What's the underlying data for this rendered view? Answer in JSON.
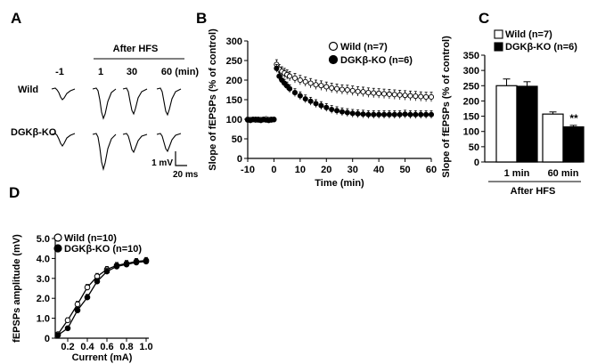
{
  "panels": {
    "a": "A",
    "b": "B",
    "c": "C",
    "d": "D"
  },
  "panel_a": {
    "header": "After HFS",
    "time_points": [
      "-1",
      "1",
      "30",
      "60 (min)"
    ],
    "rows": [
      "Wild",
      "DGKβ-KO"
    ],
    "scale_v": "1 mV",
    "scale_t": "20 ms"
  },
  "chart_data": [
    {
      "id": "b",
      "type": "line",
      "xlabel": "Time (min)",
      "ylabel": "Slope of fEPSPs (% of control)",
      "xlim": [
        -10,
        60
      ],
      "ylim": [
        0,
        300
      ],
      "xticks": [
        -10,
        0,
        10,
        20,
        30,
        40,
        50,
        60
      ],
      "yticks": [
        0,
        50,
        100,
        150,
        200,
        250,
        300
      ],
      "legend": "top-right",
      "series": [
        {
          "name": "Wild (n=7)",
          "marker": "open-circle",
          "x": [
            -10,
            -9,
            -8,
            -7,
            -6,
            -5,
            -4,
            -3,
            -2,
            -1,
            0,
            1,
            2,
            3,
            4,
            5,
            6,
            8,
            10,
            12,
            14,
            16,
            18,
            20,
            22,
            24,
            26,
            28,
            30,
            32,
            34,
            36,
            38,
            40,
            42,
            44,
            46,
            48,
            50,
            52,
            54,
            56,
            58,
            60
          ],
          "y": [
            100,
            99,
            100,
            98,
            100,
            99,
            100,
            101,
            99,
            100,
            100,
            240,
            228,
            222,
            218,
            214,
            210,
            205,
            200,
            196,
            192,
            188,
            186,
            183,
            180,
            178,
            176,
            175,
            173,
            171,
            170,
            168,
            167,
            166,
            165,
            164,
            163,
            162,
            161,
            160,
            159,
            158,
            157,
            157
          ],
          "err": 12
        },
        {
          "name": "DGKβ-KO (n=6)",
          "marker": "filled-circle",
          "x": [
            -10,
            -9,
            -8,
            -7,
            -6,
            -5,
            -4,
            -3,
            -2,
            -1,
            0,
            1,
            2,
            3,
            4,
            5,
            6,
            8,
            10,
            12,
            14,
            16,
            18,
            20,
            22,
            24,
            26,
            28,
            30,
            32,
            34,
            36,
            38,
            40,
            42,
            44,
            46,
            48,
            50,
            52,
            54,
            56,
            58,
            60
          ],
          "y": [
            98,
            97,
            99,
            100,
            98,
            97,
            99,
            98,
            97,
            98,
            99,
            230,
            210,
            200,
            192,
            185,
            178,
            168,
            160,
            152,
            146,
            140,
            135,
            130,
            125,
            122,
            119,
            117,
            115,
            114,
            113,
            112,
            112,
            112,
            112,
            112,
            112,
            112,
            113,
            112,
            112,
            112,
            112,
            112
          ],
          "err": 10
        }
      ]
    },
    {
      "id": "c",
      "type": "bar",
      "ylabel": "Slope of fEPSPs (% of control)",
      "categories": [
        "1 min",
        "60 min"
      ],
      "xlabel": "After HFS",
      "ylim": [
        0,
        350
      ],
      "yticks": [
        0,
        50,
        100,
        150,
        200,
        250,
        300,
        350
      ],
      "legend": "top-right",
      "annotation": "**",
      "series": [
        {
          "name": "Wild (n=7)",
          "fill": "white",
          "values": [
            250,
            157
          ],
          "err": [
            22,
            7
          ]
        },
        {
          "name": "DGKβ-KO (n=6)",
          "fill": "black",
          "values": [
            248,
            115
          ],
          "err": [
            15,
            5
          ]
        }
      ]
    },
    {
      "id": "d",
      "type": "line",
      "xlabel": "Current (mA)",
      "ylabel": "fEPSPs amplitude (mV)",
      "xlim": [
        0.1,
        1.0
      ],
      "ylim": [
        0,
        5.0
      ],
      "xticks": [
        0.2,
        0.4,
        0.6,
        0.8,
        1.0
      ],
      "yticks": [
        0,
        1.0,
        2.0,
        3.0,
        4.0,
        5.0
      ],
      "legend": "top-left",
      "series": [
        {
          "name": "Wild (n=10)",
          "marker": "open-circle",
          "x": [
            0.1,
            0.2,
            0.3,
            0.4,
            0.5,
            0.6,
            0.7,
            0.8,
            0.9,
            1.0
          ],
          "y": [
            0.2,
            0.9,
            1.7,
            2.55,
            3.1,
            3.45,
            3.65,
            3.75,
            3.85,
            3.9
          ],
          "err": [
            0.05,
            0.12,
            0.15,
            0.15,
            0.15,
            0.15,
            0.15,
            0.15,
            0.15,
            0.15
          ]
        },
        {
          "name": "DGKβ-KO (n=10)",
          "marker": "filled-circle",
          "x": [
            0.1,
            0.2,
            0.3,
            0.4,
            0.5,
            0.6,
            0.7,
            0.8,
            0.9,
            1.0
          ],
          "y": [
            0.15,
            0.5,
            1.4,
            2.05,
            2.85,
            3.35,
            3.6,
            3.7,
            3.8,
            3.85
          ],
          "err": [
            0.05,
            0.1,
            0.15,
            0.15,
            0.15,
            0.15,
            0.15,
            0.15,
            0.15,
            0.15
          ]
        }
      ]
    }
  ]
}
